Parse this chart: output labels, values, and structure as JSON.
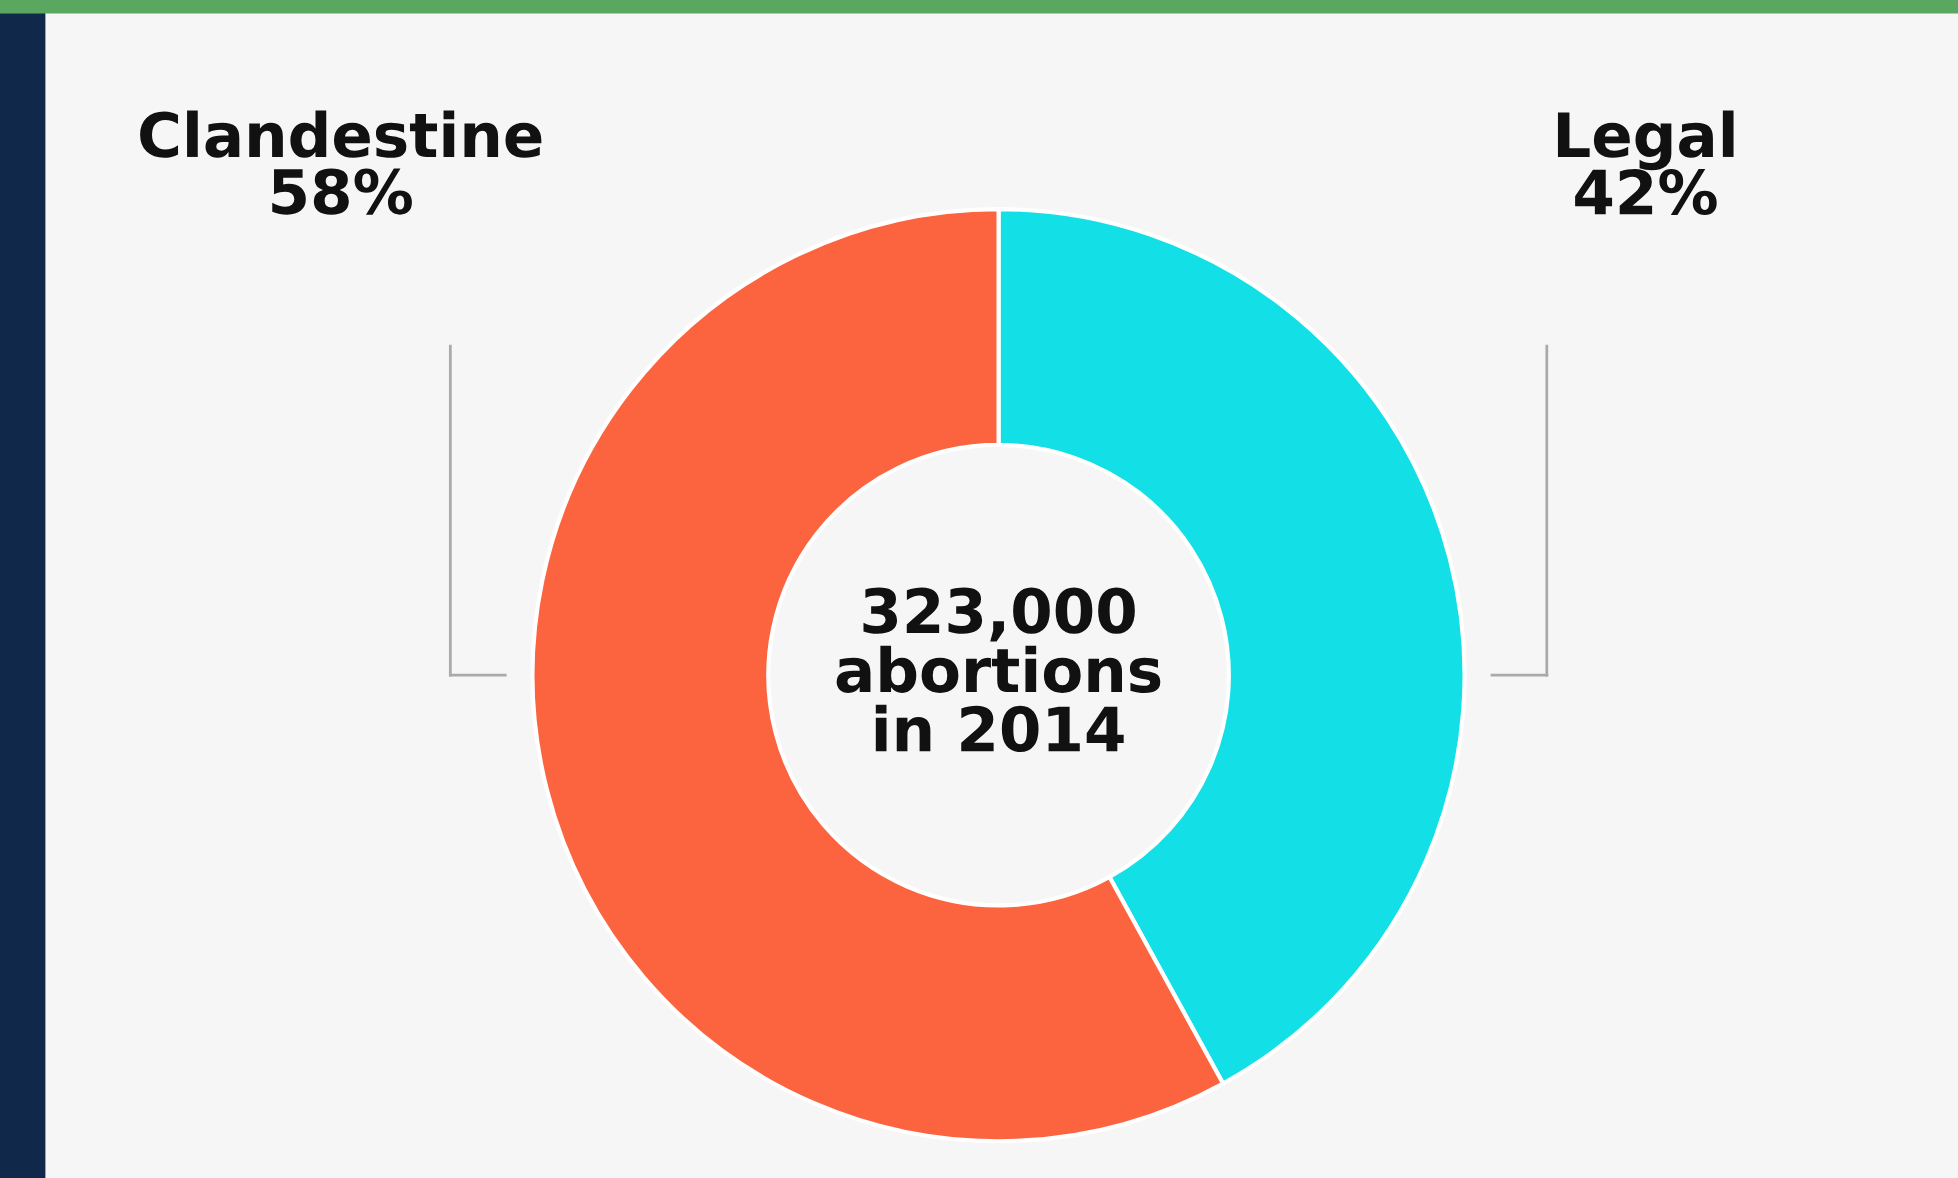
{
  "chart_data": {
    "type": "donut",
    "categories": [
      "Legal",
      "Clandestine"
    ],
    "values": [
      42,
      58
    ],
    "value_labels": [
      "42%",
      "58%"
    ],
    "colors": [
      "#13dfe6",
      "#fc6440"
    ],
    "annotations": [
      "323,000\nabortions\nin 2014"
    ],
    "legend": false
  }
}
